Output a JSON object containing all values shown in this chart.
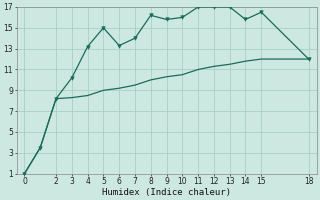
{
  "xlabel": "Humidex (Indice chaleur)",
  "bg_color": "#cce8e0",
  "grid_color": "#aacfc8",
  "line_color": "#1a6b5a",
  "xlim": [
    -0.5,
    18.5
  ],
  "ylim": [
    1,
    17
  ],
  "xticks": [
    0,
    2,
    3,
    4,
    5,
    6,
    7,
    8,
    9,
    10,
    11,
    12,
    13,
    14,
    15,
    18
  ],
  "yticks": [
    1,
    3,
    5,
    7,
    9,
    11,
    13,
    15,
    17
  ],
  "line1_x": [
    0,
    1,
    2,
    3,
    4,
    5,
    6,
    7,
    8,
    9,
    10,
    11,
    12,
    13,
    14,
    15,
    18
  ],
  "line1_y": [
    1,
    3.5,
    8.2,
    10.2,
    13.2,
    15.0,
    13.3,
    14.0,
    16.2,
    15.8,
    16.0,
    17.0,
    17.0,
    17.0,
    15.8,
    16.5,
    12.0
  ],
  "line2_x": [
    0,
    1,
    2,
    3,
    4,
    5,
    6,
    7,
    8,
    9,
    10,
    11,
    12,
    13,
    14,
    15,
    18
  ],
  "line2_y": [
    1,
    3.5,
    8.2,
    8.3,
    8.5,
    9.0,
    9.2,
    9.5,
    10.0,
    10.3,
    10.5,
    11.0,
    11.3,
    11.5,
    11.8,
    12.0,
    12.0
  ]
}
